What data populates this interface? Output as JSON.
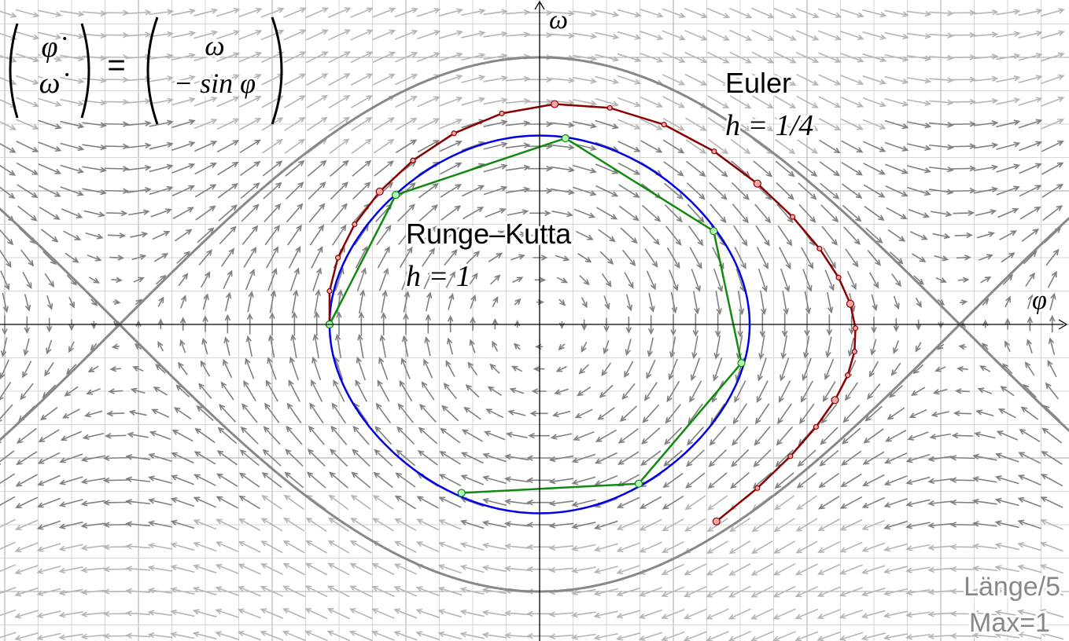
{
  "axes": {
    "x_label": "φ",
    "y_label": "ω"
  },
  "equation": {
    "lhs": [
      "φ̇",
      "ω̇"
    ],
    "equals": "=",
    "rhs": [
      "ω",
      "− sin φ"
    ]
  },
  "euler": {
    "name": "Euler",
    "step": "h = 1/4"
  },
  "runge_kutta": {
    "name": "Runge–Kutta",
    "step": "h = 1"
  },
  "field_note": {
    "length": "Länge/5",
    "max": "Max=1"
  }
}
